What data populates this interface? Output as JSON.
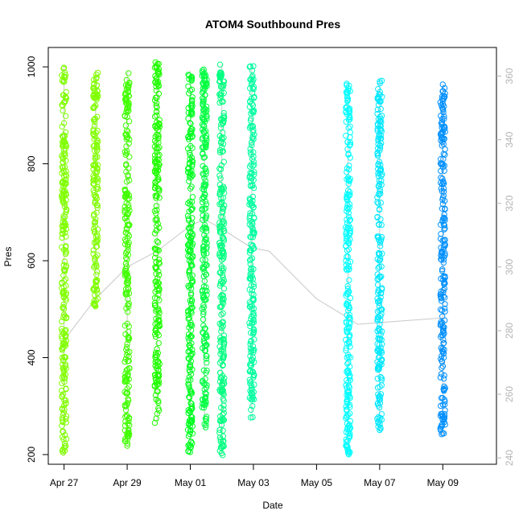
{
  "chart_data": {
    "type": "scatter",
    "title": "ATOM4 Southbound Pres",
    "xlabel": "Date",
    "ylabel": "Pres",
    "x_ticks": [
      "Apr 27",
      "Apr 29",
      "May 01",
      "May 03",
      "May 05",
      "May 07",
      "May 09"
    ],
    "x_range_days": [
      -0.5,
      13.7
    ],
    "ylim": [
      180,
      1040
    ],
    "y_ticks": [
      200,
      400,
      600,
      800,
      1000
    ],
    "y2lim": [
      238,
      369
    ],
    "y2_ticks": [
      240,
      260,
      280,
      300,
      320,
      340,
      360
    ],
    "grid": false,
    "legend": "none",
    "marker": "open-circle",
    "track_color": "#c8c8c8",
    "series": [
      {
        "day": 0.0,
        "pres_min": 197,
        "pres_max": 1002,
        "color": "#80ff00"
      },
      {
        "day": 1.0,
        "pres_min": 505,
        "pres_max": 993,
        "color": "#80ff00"
      },
      {
        "day": 2.0,
        "pres_min": 216,
        "pres_max": 990,
        "color": "#40ff00"
      },
      {
        "day": 2.95,
        "pres_min": 262,
        "pres_max": 1010,
        "color": "#20ff00"
      },
      {
        "day": 4.0,
        "pres_min": 205,
        "pres_max": 992,
        "color": "#00ff20"
      },
      {
        "day": 4.45,
        "pres_min": 250,
        "pres_max": 998,
        "color": "#00ff40"
      },
      {
        "day": 5.0,
        "pres_min": 197,
        "pres_max": 1005,
        "color": "#00ff80"
      },
      {
        "day": 5.95,
        "pres_min": 275,
        "pres_max": 1003,
        "color": "#00ffa0"
      },
      {
        "day": 9.0,
        "pres_min": 198,
        "pres_max": 968,
        "color": "#00ffff"
      },
      {
        "day": 10.0,
        "pres_min": 250,
        "pres_max": 972,
        "color": "#00e8ff"
      },
      {
        "day": 12.0,
        "pres_min": 237,
        "pres_max": 965,
        "color": "#0090ff"
      }
    ],
    "track_y2": [
      [
        0.0,
        277
      ],
      [
        1.0,
        290
      ],
      [
        2.0,
        300
      ],
      [
        2.95,
        305
      ],
      [
        4.0,
        313
      ],
      [
        4.45,
        315
      ],
      [
        5.0,
        312
      ],
      [
        5.95,
        306
      ],
      [
        6.5,
        305
      ],
      [
        8.0,
        290
      ],
      [
        9.0,
        284
      ],
      [
        9.3,
        282
      ],
      [
        12.0,
        284
      ]
    ]
  }
}
